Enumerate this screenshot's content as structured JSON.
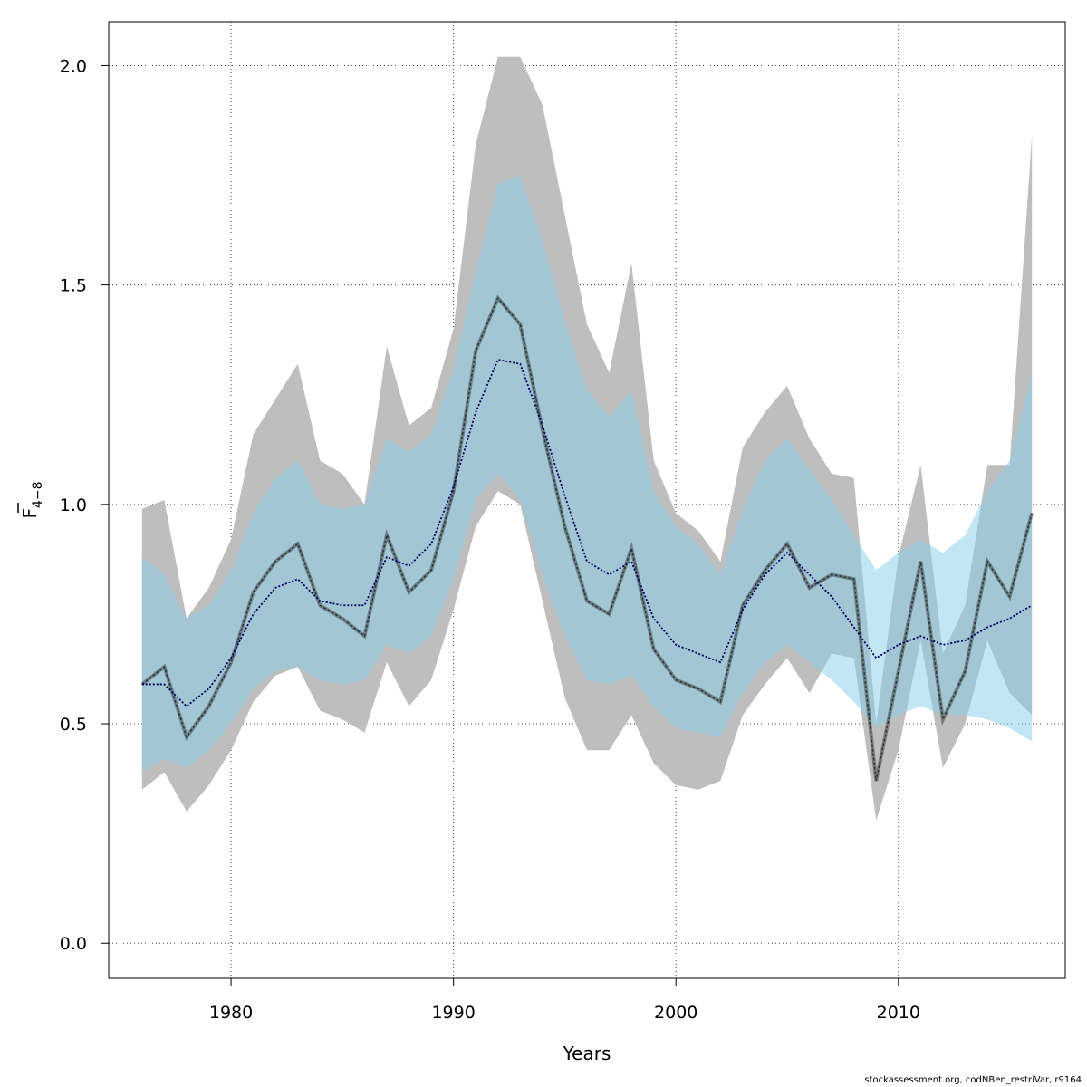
{
  "chart_data": {
    "type": "line",
    "xlabel": "Years",
    "ylabel_main": "F",
    "ylabel_sub": "4−8",
    "xlim": [
      1974.5,
      2017.5
    ],
    "ylim": [
      -0.08,
      2.1
    ],
    "x_ticks": [
      1980,
      1990,
      2000,
      2010
    ],
    "y_ticks": [
      0.0,
      0.5,
      1.0,
      1.5,
      2.0
    ],
    "y_tick_labels": [
      "0.0",
      "0.5",
      "1.0",
      "1.5",
      "2.0"
    ],
    "grid": true,
    "years": [
      1976,
      1977,
      1978,
      1979,
      1980,
      1981,
      1982,
      1983,
      1984,
      1985,
      1986,
      1987,
      1988,
      1989,
      1990,
      1991,
      1992,
      1993,
      1994,
      1995,
      1996,
      1997,
      1998,
      1999,
      2000,
      2001,
      2002,
      2003,
      2004,
      2005,
      2006,
      2007,
      2008,
      2009,
      2010,
      2011,
      2012,
      2013,
      2014,
      2015,
      2016
    ],
    "series": [
      {
        "role": "estimate",
        "line_color": "#555555",
        "band_color": "#bebebe",
        "values": [
          0.59,
          0.63,
          0.47,
          0.54,
          0.64,
          0.8,
          0.87,
          0.91,
          0.77,
          0.74,
          0.7,
          0.93,
          0.8,
          0.85,
          1.03,
          1.35,
          1.47,
          1.41,
          1.17,
          0.95,
          0.78,
          0.75,
          0.9,
          0.67,
          0.6,
          0.58,
          0.55,
          0.77,
          0.85,
          0.91,
          0.81,
          0.84,
          0.83,
          0.37,
          0.62,
          0.87,
          0.51,
          0.62,
          0.87,
          0.79,
          0.98
        ],
        "lower": [
          0.35,
          0.39,
          0.3,
          0.36,
          0.44,
          0.55,
          0.61,
          0.63,
          0.53,
          0.51,
          0.48,
          0.64,
          0.54,
          0.6,
          0.76,
          0.95,
          1.03,
          1.0,
          0.78,
          0.56,
          0.44,
          0.44,
          0.52,
          0.41,
          0.36,
          0.35,
          0.37,
          0.52,
          0.59,
          0.65,
          0.57,
          0.66,
          0.65,
          0.28,
          0.44,
          0.69,
          0.4,
          0.5,
          0.69,
          0.57,
          0.52
        ],
        "upper": [
          0.99,
          1.01,
          0.74,
          0.81,
          0.92,
          1.16,
          1.24,
          1.32,
          1.1,
          1.07,
          1.0,
          1.36,
          1.18,
          1.22,
          1.4,
          1.82,
          2.02,
          2.02,
          1.91,
          1.66,
          1.41,
          1.3,
          1.55,
          1.1,
          0.98,
          0.94,
          0.87,
          1.13,
          1.21,
          1.27,
          1.15,
          1.07,
          1.06,
          0.5,
          0.88,
          1.09,
          0.66,
          0.77,
          1.09,
          1.09,
          1.84
        ]
      },
      {
        "role": "alternative",
        "line_color": "#00008b",
        "band_color": "#87ceeb",
        "values": [
          0.59,
          0.59,
          0.54,
          0.58,
          0.65,
          0.75,
          0.81,
          0.83,
          0.78,
          0.77,
          0.77,
          0.88,
          0.86,
          0.91,
          1.04,
          1.21,
          1.33,
          1.32,
          1.18,
          1.02,
          0.87,
          0.84,
          0.87,
          0.74,
          0.68,
          0.66,
          0.64,
          0.76,
          0.84,
          0.89,
          0.84,
          0.79,
          0.72,
          0.65,
          0.68,
          0.7,
          0.68,
          0.69,
          0.72,
          0.74,
          0.77
        ],
        "lower": [
          0.39,
          0.42,
          0.4,
          0.44,
          0.5,
          0.58,
          0.62,
          0.63,
          0.6,
          0.59,
          0.6,
          0.68,
          0.66,
          0.7,
          0.83,
          1.01,
          1.07,
          1.01,
          0.84,
          0.7,
          0.6,
          0.59,
          0.61,
          0.54,
          0.49,
          0.48,
          0.47,
          0.57,
          0.64,
          0.68,
          0.64,
          0.6,
          0.55,
          0.49,
          0.52,
          0.54,
          0.52,
          0.52,
          0.51,
          0.49,
          0.46
        ],
        "upper": [
          0.88,
          0.84,
          0.74,
          0.77,
          0.85,
          0.98,
          1.06,
          1.1,
          1.0,
          0.99,
          1.0,
          1.15,
          1.12,
          1.16,
          1.31,
          1.53,
          1.73,
          1.75,
          1.6,
          1.42,
          1.26,
          1.2,
          1.26,
          1.03,
          0.95,
          0.91,
          0.84,
          0.99,
          1.1,
          1.15,
          1.08,
          1.01,
          0.93,
          0.85,
          0.89,
          0.92,
          0.89,
          0.93,
          1.03,
          1.1,
          1.3
        ]
      }
    ]
  },
  "footer_note": "stockassessment.org, codNBen_restriVar, r9164"
}
